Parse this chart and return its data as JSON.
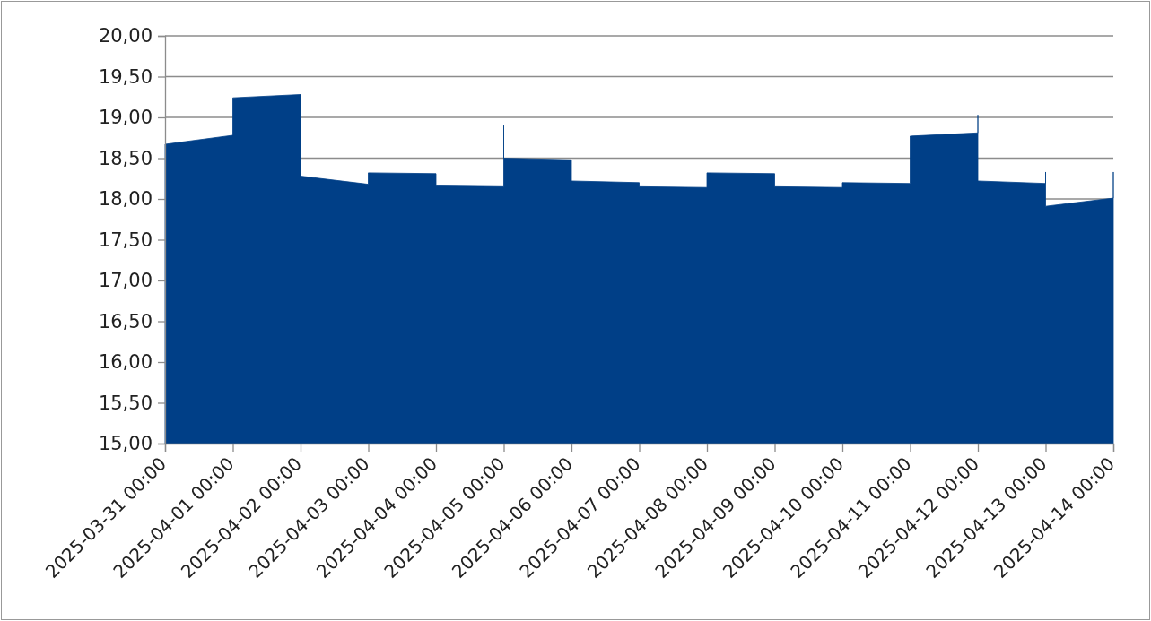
{
  "chart_data": {
    "type": "area",
    "x": [
      "2025-03-31T00:00",
      "2025-04-01T00:00",
      "2025-04-01T00:00",
      "2025-04-02T00:00",
      "2025-04-02T00:00",
      "2025-04-03T00:00",
      "2025-04-03T00:00",
      "2025-04-04T00:00",
      "2025-04-04T00:00",
      "2025-04-05T00:00",
      "2025-04-05T00:00",
      "2025-04-05T00:00",
      "2025-04-06T00:00",
      "2025-04-06T00:00",
      "2025-04-07T00:00",
      "2025-04-07T00:00",
      "2025-04-08T00:00",
      "2025-04-08T00:00",
      "2025-04-09T00:00",
      "2025-04-09T00:00",
      "2025-04-10T00:00",
      "2025-04-10T00:00",
      "2025-04-11T00:00",
      "2025-04-11T00:00",
      "2025-04-12T00:00",
      "2025-04-12T00:00",
      "2025-04-12T00:00",
      "2025-04-13T00:00",
      "2025-04-13T00:00",
      "2025-04-13T00:00",
      "2025-04-14T00:00",
      "2025-04-14T00:00"
    ],
    "series": [
      {
        "color": "#003f87",
        "values": [
          18.67,
          18.78,
          19.24,
          19.28,
          18.28,
          18.18,
          18.32,
          18.31,
          18.16,
          18.15,
          18.9,
          18.5,
          18.48,
          18.22,
          18.2,
          18.15,
          18.14,
          18.32,
          18.31,
          18.15,
          18.14,
          18.2,
          18.19,
          18.77,
          18.81,
          19.03,
          18.22,
          18.19,
          18.33,
          17.91,
          18.01,
          18.33
        ]
      }
    ],
    "ylim": [
      15,
      20
    ],
    "yticks": [
      {
        "value": 15,
        "label": "15,00"
      },
      {
        "value": 15.5,
        "label": "15,50"
      },
      {
        "value": 16,
        "label": "16,00"
      },
      {
        "value": 16.5,
        "label": "16,50"
      },
      {
        "value": 17,
        "label": "17,00"
      },
      {
        "value": 17.5,
        "label": "17,50"
      },
      {
        "value": 18,
        "label": "18,00"
      },
      {
        "value": 18.5,
        "label": "18,50"
      },
      {
        "value": 19,
        "label": "19,00"
      },
      {
        "value": 19.5,
        "label": "19,50"
      },
      {
        "value": 20,
        "label": "20,00"
      }
    ],
    "xlim": [
      "2025-03-31T00:00",
      "2025-04-14T00:00"
    ],
    "xticks": [
      {
        "value": "2025-03-31T00:00",
        "label": "2025-03-31 00:00"
      },
      {
        "value": "2025-04-01T00:00",
        "label": "2025-04-01 00:00"
      },
      {
        "value": "2025-04-02T00:00",
        "label": "2025-04-02 00:00"
      },
      {
        "value": "2025-04-03T00:00",
        "label": "2025-04-03 00:00"
      },
      {
        "value": "2025-04-04T00:00",
        "label": "2025-04-04 00:00"
      },
      {
        "value": "2025-04-05T00:00",
        "label": "2025-04-05 00:00"
      },
      {
        "value": "2025-04-06T00:00",
        "label": "2025-04-06 00:00"
      },
      {
        "value": "2025-04-07T00:00",
        "label": "2025-04-07 00:00"
      },
      {
        "value": "2025-04-08T00:00",
        "label": "2025-04-08 00:00"
      },
      {
        "value": "2025-04-09T00:00",
        "label": "2025-04-09 00:00"
      },
      {
        "value": "2025-04-10T00:00",
        "label": "2025-04-10 00:00"
      },
      {
        "value": "2025-04-11T00:00",
        "label": "2025-04-11 00:00"
      },
      {
        "value": "2025-04-12T00:00",
        "label": "2025-04-12 00:00"
      },
      {
        "value": "2025-04-13T00:00",
        "label": "2025-04-13 00:00"
      },
      {
        "value": "2025-04-14T00:00",
        "label": "2025-04-14 00:00"
      }
    ],
    "grid": "y"
  }
}
